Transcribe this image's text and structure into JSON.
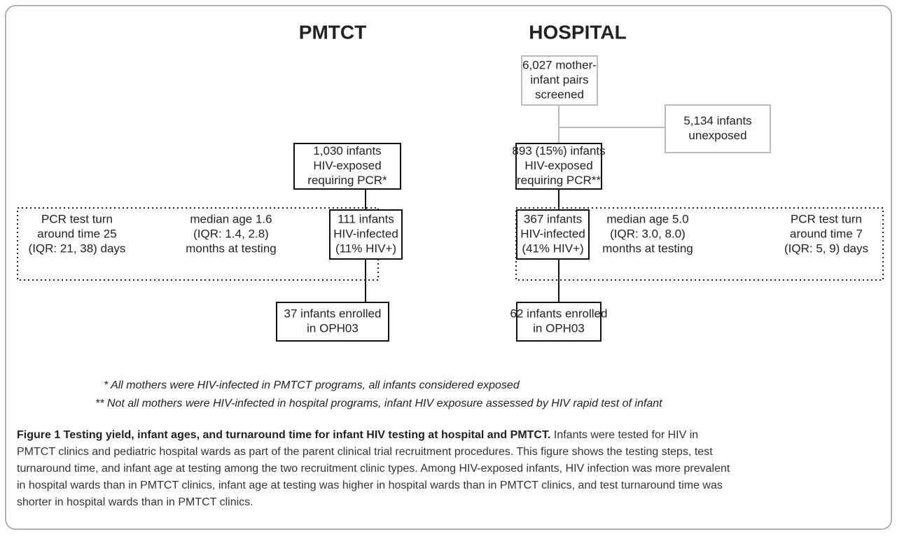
{
  "headings": [
    "PMTCT",
    "HOSPITAL"
  ],
  "nodes": [
    {
      "id": "screened",
      "lines": [
        "6,027 mother-",
        "infant pairs",
        "screened"
      ]
    },
    {
      "id": "unexposed",
      "lines": [
        "5,134 infants",
        "unexposed"
      ]
    },
    {
      "id": "pmtct-exposed",
      "lines": [
        "1,030 infants",
        "HIV-exposed",
        "requiring PCR*"
      ]
    },
    {
      "id": "hosp-exposed",
      "lines": [
        "893 (15%) infants",
        "HIV-exposed",
        "requiring PCR**"
      ]
    },
    {
      "id": "pmtct-infected",
      "lines": [
        "111 infants",
        "HIV-infected",
        "(11% HIV+)"
      ]
    },
    {
      "id": "hosp-infected",
      "lines": [
        "367 infants",
        "HIV-infected",
        "(41% HIV+)"
      ]
    },
    {
      "id": "pmtct-enrolled",
      "lines": [
        "37 infants enrolled",
        "in OPH03"
      ]
    },
    {
      "id": "hosp-enrolled",
      "lines": [
        "62 infants enrolled",
        "in OPH03"
      ]
    },
    {
      "id": "pmtct-turnaround",
      "lines": [
        "PCR test turn",
        "around time 25",
        "(IQR: 21, 38) days"
      ]
    },
    {
      "id": "pmtct-age",
      "lines": [
        "median age 1.6",
        "(IQR: 1.4, 2.8)",
        "months at testing"
      ]
    },
    {
      "id": "hosp-age",
      "lines": [
        "median age 5.0",
        "(IQR: 3.0, 8.0)",
        "months at testing"
      ]
    },
    {
      "id": "hosp-turnaround",
      "lines": [
        "PCR test turn",
        "around time 7",
        "(IQR: 5, 9) days"
      ]
    }
  ],
  "footnotes": [
    "* All mothers were HIV-infected in PMTCT programs, all infants considered exposed",
    "** Not all mothers were HIV-infected in hospital programs, infant HIV exposure assessed by HIV rapid test of infant"
  ],
  "caption": {
    "title": "Figure 1 Testing yield, infant ages, and turnaround time for infant HIV testing at hospital and PMTCT.",
    "lines": [
      "Infants were tested for HIV in",
      "PMTCT clinics and pediatric hospital wards as part of the parent clinical trial recruitment procedures. This figure shows the testing steps, test",
      "turnaround time, and infant age at testing among the two recruitment clinic types. Among HIV-exposed infants, HIV infection was more prevalent",
      "in hospital wards than in PMTCT clinics, infant age at testing was higher in hospital wards than in PMTCT clinics, and test turnaround time was",
      "shorter in hospital wards than in PMTCT clinics."
    ]
  }
}
